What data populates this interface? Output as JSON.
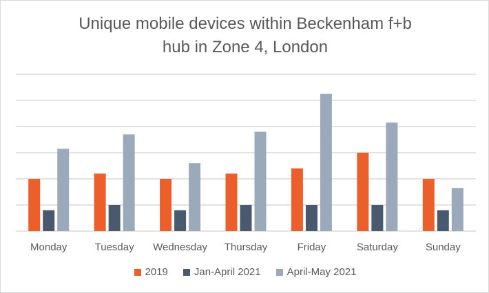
{
  "chart_data": {
    "type": "bar",
    "title_line1": "Unique mobile devices within Beckenham f+b",
    "title_line2": "hub in Zone 4, London",
    "categories": [
      "Monday",
      "Tuesday",
      "Wednesday",
      "Thursday",
      "Friday",
      "Saturday",
      "Sunday"
    ],
    "series": [
      {
        "name": "2019",
        "color": "#ED5F2A",
        "values": [
          2.0,
          2.2,
          2.0,
          2.2,
          2.4,
          3.0,
          2.0
        ]
      },
      {
        "name": "Jan-April 2021",
        "color": "#4A5A6E",
        "values": [
          0.8,
          1.0,
          0.8,
          1.0,
          1.0,
          1.0,
          0.8
        ]
      },
      {
        "name": "April-May 2021",
        "color": "#9BAABB",
        "values": [
          3.15,
          3.7,
          2.6,
          3.8,
          5.25,
          4.15,
          1.65
        ]
      }
    ],
    "ylim": [
      0,
      6
    ],
    "y_tick_labels_shown": false,
    "grid": true,
    "legend_position": "bottom"
  }
}
